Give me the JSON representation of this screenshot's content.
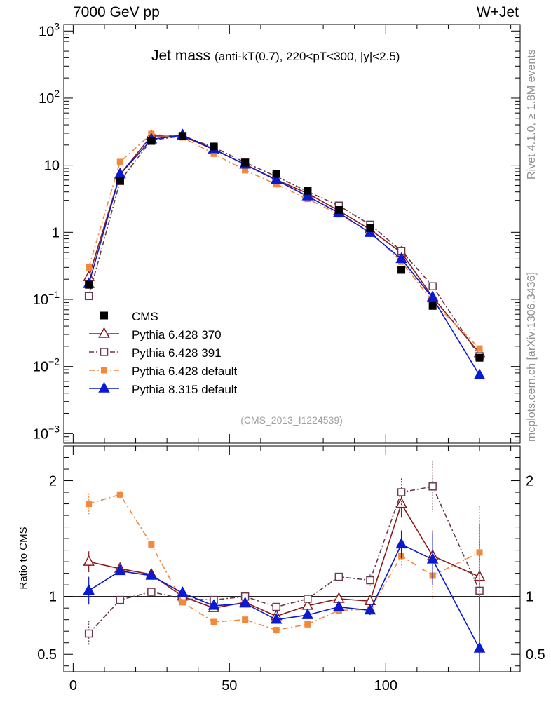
{
  "header": {
    "energy_label": "7000 GeV pp",
    "process_label": "W+Jet"
  },
  "side_labels": {
    "rivet": "Rivet 4.1.0, ≥ 1.8M events",
    "source": "mcplots.cern.ch [arXiv:1306.3436]"
  },
  "chart_data": {
    "type": "line",
    "title": "Jet mass",
    "subtitle": "(anti-kT(0.7), 220<pT<300, |y|<2.5)",
    "analysis_id": "(CMS_2013_I1224539)",
    "x": [
      5,
      15,
      25,
      35,
      45,
      55,
      65,
      75,
      85,
      95,
      105,
      115,
      130
    ],
    "xlim": [
      -3,
      143
    ],
    "xticks": [
      0,
      50,
      100
    ],
    "top_panel": {
      "yscale": "log",
      "ylim": [
        0.00072,
        1250
      ],
      "ytick_labels": [
        {
          "value": 0.001,
          "base": "10",
          "exp": "−3"
        },
        {
          "value": 0.01,
          "base": "10",
          "exp": "−2"
        },
        {
          "value": 0.1,
          "base": "10",
          "exp": "−1"
        },
        {
          "value": 1,
          "base": "1",
          "exp": ""
        },
        {
          "value": 10,
          "base": "10",
          "exp": ""
        },
        {
          "value": 100,
          "base": "10",
          "exp": "2"
        },
        {
          "value": 1000,
          "base": "10",
          "exp": "3"
        }
      ]
    },
    "ratio_panel": {
      "ylabel": "Ratio to CMS",
      "ylim": [
        0.35,
        2.3
      ],
      "yticks": [
        0.5,
        1,
        2
      ],
      "ytick_labels": [
        "0.5",
        "1",
        "2"
      ],
      "reference_line": 1
    },
    "data": {
      "name": "CMS",
      "color": "#000000",
      "values": [
        0.165,
        5.9,
        23.0,
        27.3,
        19.0,
        10.9,
        7.4,
        4.15,
        2.15,
        1.15,
        0.275,
        0.08,
        0.0135
      ]
    },
    "series": [
      {
        "name": "Pythia 6.428 370",
        "color": "#8b1a1a",
        "marker": "triangle-open",
        "dash": "",
        "values": [
          0.215,
          7.3,
          27.3,
          27.3,
          17.1,
          10.3,
          6.1,
          3.8,
          2.1,
          1.1,
          0.5,
          0.108,
          0.0158
        ],
        "ratio": [
          1.3,
          1.24,
          1.19,
          1.0,
          0.9,
          0.95,
          0.83,
          0.92,
          0.98,
          0.96,
          1.8,
          1.35,
          1.17
        ],
        "ratio_err": [
          0.09,
          0.03,
          0.03,
          0.02,
          0.02,
          0.02,
          0.03,
          0.03,
          0.03,
          0.04,
          0.12,
          0.22,
          0.45
        ]
      },
      {
        "name": "Pythia 6.428 391",
        "color": "#6b3a4a",
        "marker": "square-open",
        "dash": "7,3,2,3",
        "values": [
          0.112,
          5.8,
          23.7,
          27.2,
          18.5,
          11.0,
          6.8,
          4.05,
          2.5,
          1.3,
          0.53,
          0.157,
          0.0142
        ],
        "ratio": [
          0.68,
          0.97,
          1.04,
          0.98,
          0.97,
          1.0,
          0.91,
          0.98,
          1.17,
          1.14,
          1.9,
          1.95,
          1.05
        ],
        "ratio_err": [
          0.11,
          0.03,
          0.03,
          0.02,
          0.02,
          0.02,
          0.03,
          0.03,
          0.03,
          0.05,
          0.12,
          0.22,
          0.45
        ]
      },
      {
        "name": "Pythia 6.428 default",
        "color": "#f4873a",
        "marker": "square-filled",
        "dash": "8,4,2,4",
        "values": [
          0.3,
          11.2,
          29.3,
          26.0,
          14.8,
          8.4,
          5.2,
          3.15,
          1.85,
          1.02,
          0.365,
          0.093,
          0.0185
        ],
        "ratio": [
          1.8,
          1.88,
          1.45,
          0.95,
          0.78,
          0.8,
          0.71,
          0.76,
          0.88,
          0.89,
          1.35,
          1.18,
          1.38
        ],
        "ratio_err": [
          0.09,
          0.03,
          0.03,
          0.02,
          0.02,
          0.02,
          0.03,
          0.03,
          0.03,
          0.04,
          0.1,
          0.2,
          0.4
        ]
      },
      {
        "name": "Pythia 8.315 default",
        "color": "#0a1ad2",
        "marker": "triangle-filled",
        "dash": "",
        "values": [
          0.17,
          7.3,
          24.3,
          28.0,
          17.4,
          10.2,
          6.0,
          3.45,
          1.95,
          0.98,
          0.4,
          0.105,
          0.0074
        ],
        "ratio": [
          1.05,
          1.22,
          1.18,
          1.03,
          0.92,
          0.94,
          0.8,
          0.84,
          0.91,
          0.88,
          1.45,
          1.32,
          0.55
        ],
        "ratio_err": [
          0.12,
          0.03,
          0.03,
          0.02,
          0.02,
          0.02,
          0.03,
          0.03,
          0.03,
          0.04,
          0.12,
          0.22,
          0.45
        ]
      }
    ]
  }
}
